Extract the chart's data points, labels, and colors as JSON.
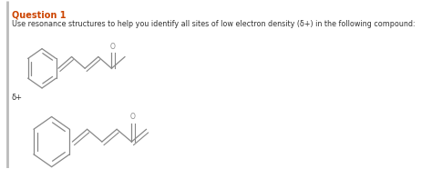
{
  "background_color": "#ffffff",
  "border_color": "#cccccc",
  "left_bar_color": "#999999",
  "title_text": "Question 1",
  "title_color": "#cc4400",
  "title_fontsize": 7.0,
  "question_text": "Use resonance structures to help you identify all sites of low electron density (δ+) in the following compound:",
  "question_fontsize": 5.8,
  "delta_label": "δ+",
  "delta_fontsize": 6.0,
  "line_color": "#888888",
  "line_width": 0.9
}
